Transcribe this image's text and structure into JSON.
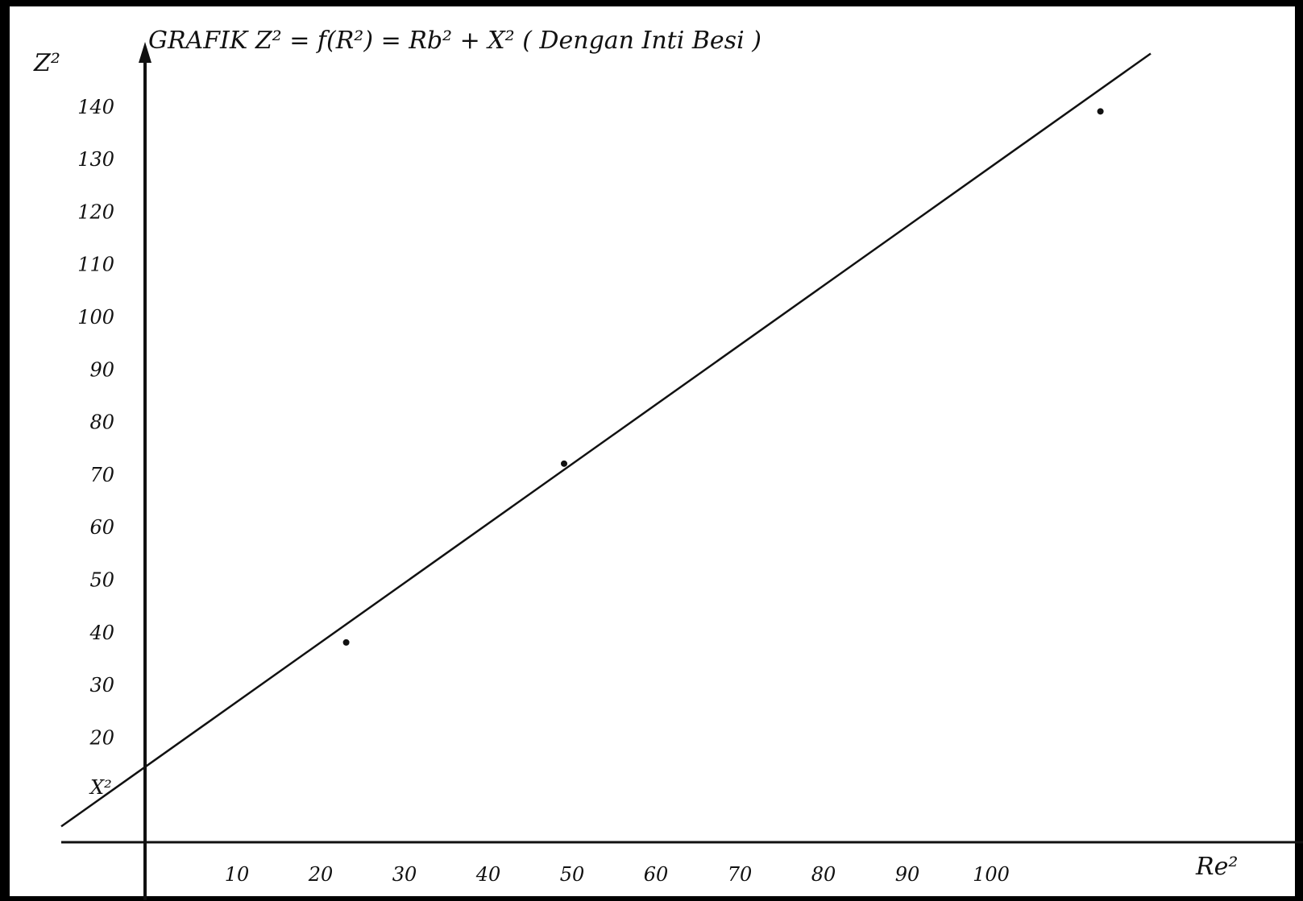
{
  "chart_data": {
    "type": "line",
    "title": "GRAFIK  Z² = f(R²) = Rb² + X²   ( Dengan Inti Besi )",
    "xlabel": "Re²",
    "ylabel": "Z²",
    "y_intercept_label": "X²",
    "xlim": [
      -10,
      140
    ],
    "ylim": [
      -11,
      149
    ],
    "x_ticks": [
      10,
      20,
      30,
      40,
      50,
      60,
      70,
      80,
      90,
      100
    ],
    "x_tick_labels": [
      "10",
      "20",
      "30",
      "40",
      "50",
      "60",
      "70",
      "80",
      "90",
      "100"
    ],
    "y_ticks": [
      20,
      30,
      40,
      50,
      60,
      70,
      80,
      90,
      100,
      110,
      120,
      130,
      140
    ],
    "y_tick_labels": [
      "20",
      "30",
      "40",
      "50",
      "60",
      "70",
      "80",
      "90",
      "100",
      "110",
      "120",
      "130",
      "140"
    ],
    "series": [
      {
        "type": "line",
        "x": [
          -10,
          120
        ],
        "y": [
          3,
          150
        ]
      },
      {
        "type": "scatter",
        "x": [
          24,
          50,
          114
        ],
        "y": [
          38,
          72,
          139
        ]
      }
    ],
    "grid": false,
    "legend": "none"
  },
  "colors": {
    "background": "#000000",
    "paper": "#ffffff",
    "ink": "#111111"
  }
}
